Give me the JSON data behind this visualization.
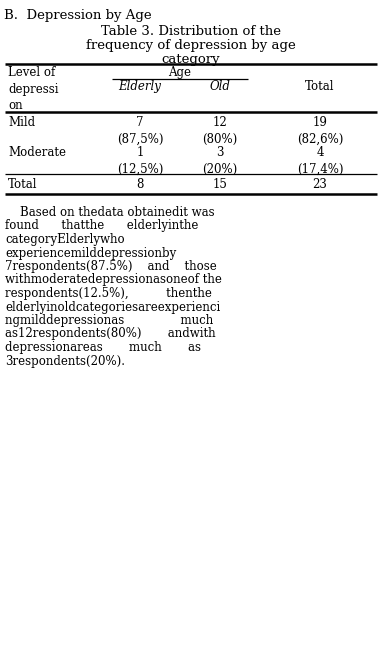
{
  "title_line1": "B.  Depression by Age",
  "title_line2": "Table 3. Distribution of the",
  "title_line3": "frequency of depression by age",
  "title_line4": "category",
  "col_header_left": "Level of\ndepressi\non",
  "col_header_age": "Age",
  "col_header_elderly": "Elderly",
  "col_header_old": "Old",
  "col_header_total": "Total",
  "rows": [
    {
      "label": "Mild",
      "elderly": "7\n(87,5%)",
      "old": "12\n(80%)",
      "total": "19\n(82,6%)"
    },
    {
      "label": "Moderate",
      "elderly": "1\n(12,5%)",
      "old": "3\n(20%)",
      "total": "4\n(17,4%)"
    },
    {
      "label": "Total",
      "elderly": "8",
      "old": "15",
      "total": "23"
    }
  ],
  "para_lines": [
    "    Based on thedata obtainedit was",
    "found      thatthe      elderlyinthe",
    "categoryElderlywho",
    "experiencemilddepressionby",
    "7respondents(87.5%)    and    those",
    "withmoderatedepressionasoneof the",
    "respondents(12.5%),          thenthe",
    "elderlyinoldcategoriesareexperienci",
    "ngmilddepressionas               much",
    "as12respondents(80%)       andwith",
    "depressionareas       much       as",
    "3respondents(20%)."
  ],
  "bg_color": "#ffffff",
  "text_color": "#000000",
  "font_size": 8.5,
  "title_font_size": 9.5
}
